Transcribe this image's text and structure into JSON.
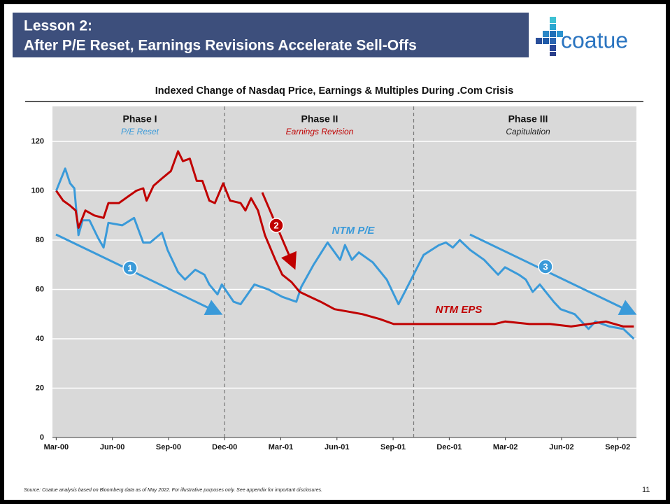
{
  "header": {
    "title_line1": "Lesson 2:",
    "title_line2": "After P/E Reset, Earnings Revisions Accelerate Sell-Offs",
    "logo": "coatue"
  },
  "chart_data": {
    "type": "line",
    "title": "Indexed Change of Nasdaq Price, Earnings & Multiples During .Com Crisis",
    "xlim": [
      -0.2,
      31
    ],
    "ylim": [
      0,
      130
    ],
    "xticks": [
      {
        "value": 0,
        "label": "Mar-00"
      },
      {
        "value": 3,
        "label": "Jun-00"
      },
      {
        "value": 6,
        "label": "Sep-00"
      },
      {
        "value": 9,
        "label": "Dec-00"
      },
      {
        "value": 12,
        "label": "Mar-01"
      },
      {
        "value": 15,
        "label": "Jun-01"
      },
      {
        "value": 18,
        "label": "Sep-01"
      },
      {
        "value": 21,
        "label": "Dec-01"
      },
      {
        "value": 24,
        "label": "Mar-02"
      },
      {
        "value": 27,
        "label": "Jun-02"
      },
      {
        "value": 30,
        "label": "Sep-02"
      }
    ],
    "yticks": [
      0,
      20,
      40,
      60,
      80,
      100,
      120
    ],
    "grid": true,
    "phase_boundaries": [
      9,
      19.1
    ],
    "phases": [
      {
        "title": "Phase I",
        "subtitle": "P/E Reset",
        "color": "#3a9ad9"
      },
      {
        "title": "Phase II",
        "subtitle": "Earnings Revision",
        "color": "#c00000"
      },
      {
        "title": "Phase III",
        "subtitle": "Capitulation",
        "color": "#222222"
      }
    ],
    "annotations": [
      "1",
      "2",
      "3"
    ],
    "series": [
      {
        "name": "NTM P/E",
        "color": "#3a9ad9",
        "x": [
          0,
          0.48,
          0.74,
          0.97,
          1.19,
          1.41,
          1.78,
          2.23,
          2.53,
          2.79,
          3.53,
          4.16,
          4.65,
          5.02,
          5.65,
          5.95,
          6.51,
          6.88,
          7.43,
          7.92,
          8.18,
          8.62,
          8.85,
          9.48,
          9.85,
          10.59,
          11.34,
          12.08,
          12.83,
          13.09,
          13.75,
          14.5,
          15.17,
          15.43,
          15.8,
          16.17,
          16.91,
          17.66,
          18.29,
          18.96,
          19.63,
          20.45,
          20.82,
          21.19,
          21.56,
          22.12,
          22.86,
          23.61,
          23.98,
          24.72,
          25.09,
          25.46,
          25.84,
          26.58,
          26.95,
          27.7,
          28.44,
          28.81,
          29.55,
          30.3,
          30.86
        ],
        "values": [
          100,
          109,
          103,
          101,
          82,
          88,
          88,
          81,
          77,
          87,
          86,
          89,
          79,
          79,
          83,
          76,
          67,
          64,
          68,
          66,
          62,
          58,
          62,
          55,
          54,
          62,
          60,
          57,
          55,
          61,
          70,
          79,
          72,
          78,
          72,
          75,
          71,
          64,
          54,
          64,
          74,
          78,
          79,
          77,
          80,
          76,
          72,
          66,
          69,
          66,
          64,
          59,
          62,
          55,
          52,
          50,
          44,
          47,
          45,
          44,
          40
        ]
      },
      {
        "name": "NTM EPS",
        "color": "#c00000",
        "x": [
          0,
          0.37,
          0.74,
          1.04,
          1.19,
          1.56,
          2.04,
          2.53,
          2.79,
          3.35,
          3.9,
          4.28,
          4.65,
          4.83,
          5.2,
          5.65,
          6.13,
          6.51,
          6.77,
          7.14,
          7.51,
          7.81,
          8.18,
          8.48,
          8.92,
          9.29,
          9.85,
          10.11,
          10.41,
          10.78,
          11.15,
          11.71,
          12.08,
          12.57,
          13.01,
          13.57,
          14.13,
          14.87,
          15.61,
          16.36,
          17.29,
          18.03,
          18.96,
          20.07,
          21.19,
          22.3,
          23.42,
          23.98,
          25.28,
          26.39,
          27.51,
          28.44,
          29.37,
          30.3,
          30.86
        ],
        "values": [
          100,
          96,
          94,
          92,
          85,
          92,
          90,
          89,
          95,
          95,
          98,
          100,
          101,
          96,
          102,
          105,
          108,
          116,
          112,
          113,
          104,
          104,
          96,
          95,
          103,
          96,
          95,
          92,
          97,
          92,
          82,
          72,
          66,
          63,
          59,
          57,
          55,
          52,
          51,
          50,
          48,
          46,
          46,
          46,
          46,
          46,
          46,
          47,
          46,
          46,
          45,
          46,
          47,
          45,
          45
        ]
      }
    ]
  },
  "footer": {
    "source": "Source: Coatue analysis based on Bloomberg data as of May 2022. For illustrative purposes only. See appendix for important disclosures.",
    "page": "11"
  }
}
